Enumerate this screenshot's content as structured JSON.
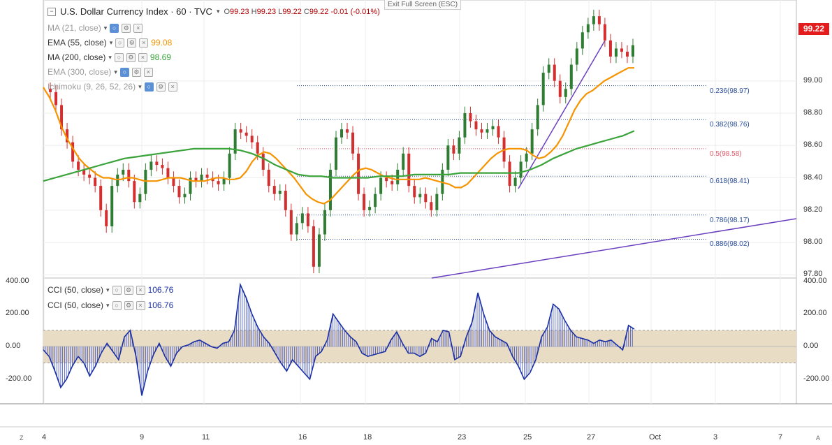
{
  "header": {
    "collapse_icon": "minus-square-icon",
    "title": "U.S. Dollar Currency Index · 60 · TVC",
    "ohlc": {
      "o_label": "O",
      "o": "99.23",
      "h_label": "H",
      "h": "99.23",
      "l_label": "L",
      "l": "99.22",
      "c_label": "C",
      "c": "99.22",
      "change": "-0.01 (-0.01%)"
    },
    "exit_fullscreen": "Exit Full Screen (ESC)"
  },
  "indicators": [
    {
      "label": "MA (21, close)",
      "value": "",
      "color": "#9a9a9a"
    },
    {
      "label": "EMA (55, close)",
      "value": "99.08",
      "color": "#f59300"
    },
    {
      "label": "MA (200, close)",
      "value": "98.69",
      "color": "#3aa33a"
    },
    {
      "label": "EMA (300, close)",
      "value": "",
      "color": "#9a9a9a"
    },
    {
      "label": "Ichimoku (9, 26, 52, 26)",
      "value": "",
      "color": "#9a9a9a"
    }
  ],
  "cci_legends": [
    {
      "label": "CCI (50, close)",
      "value": "106.76"
    },
    {
      "label": "CCI (50, close)",
      "value": "106.76"
    }
  ],
  "last_price": "99.22",
  "price_axis": [
    "99.00",
    "98.80",
    "98.60",
    "98.40",
    "98.20",
    "98.00",
    "97.80"
  ],
  "cci_axis": [
    "400.00",
    "200.00",
    "0.00",
    "-200.00"
  ],
  "time_axis": [
    "4",
    "9",
    "11",
    "16",
    "18",
    "23",
    "25",
    "27",
    "Oct",
    "3",
    "7"
  ],
  "corner_left": "Z",
  "corner_right": "A",
  "colors": {
    "up": "#2e7d32",
    "down": "#d32f2f",
    "ema55": "#f59300",
    "ma200": "#3aa33a",
    "trend": "#6a3fbf",
    "cci": "#1a2fa3",
    "band": "#e9dcc4"
  },
  "chart_data": {
    "type": "line",
    "title": "U.S. Dollar Currency Index · 60 · TVC",
    "price_range": [
      97.78,
      99.5
    ],
    "cci_range": [
      -350,
      420
    ],
    "fibonacci": [
      {
        "label": "0.236(98.97)",
        "value": 98.97,
        "color": "#2b4f99"
      },
      {
        "label": "0.382(98.76)",
        "value": 98.76,
        "color": "#2b4f99"
      },
      {
        "label": "0.5(98.58)",
        "value": 98.58,
        "color": "#e05a6a"
      },
      {
        "label": "0.618(98.41)",
        "value": 98.41,
        "color": "#2b4f99"
      },
      {
        "label": "0.786(98.17)",
        "value": 98.17,
        "color": "#2b4f99"
      },
      {
        "label": "0.886(98.02)",
        "value": 98.02,
        "color": "#2b4f99"
      }
    ],
    "price_series": [
      98.95,
      98.93,
      98.85,
      98.7,
      98.62,
      98.5,
      98.45,
      98.42,
      98.4,
      98.35,
      98.2,
      98.1,
      98.35,
      98.42,
      98.45,
      98.38,
      98.25,
      98.3,
      98.45,
      98.5,
      98.48,
      98.46,
      98.4,
      98.35,
      98.28,
      98.3,
      98.4,
      98.38,
      98.42,
      98.4,
      98.38,
      98.36,
      98.4,
      98.55,
      98.7,
      98.68,
      98.66,
      98.62,
      98.55,
      98.45,
      98.35,
      98.3,
      98.32,
      98.2,
      98.05,
      98.12,
      98.18,
      98.1,
      97.85,
      98.05,
      98.2,
      98.45,
      98.65,
      98.7,
      98.68,
      98.55,
      98.3,
      98.2,
      98.22,
      98.3,
      98.4,
      98.38,
      98.36,
      98.45,
      98.55,
      98.35,
      98.28,
      98.3,
      98.25,
      98.2,
      98.3,
      98.45,
      98.6,
      98.55,
      98.65,
      98.8,
      98.75,
      98.7,
      98.68,
      98.7,
      98.72,
      98.65,
      98.5,
      98.35,
      98.4,
      98.5,
      98.55,
      98.7,
      98.85,
      99.05,
      99.1,
      99.0,
      98.9,
      98.95,
      99.1,
      99.2,
      99.3,
      99.35,
      99.4,
      99.35,
      99.25,
      99.15,
      99.2,
      99.18,
      99.15,
      99.22
    ],
    "ema55": [
      98.96,
      98.9,
      98.82,
      98.72,
      98.64,
      98.58,
      98.52,
      98.48,
      98.45,
      98.42,
      98.4,
      98.4,
      98.39,
      98.39,
      98.4,
      98.4,
      98.39,
      98.38,
      98.38,
      98.38,
      98.39,
      98.4,
      98.4,
      98.4,
      98.39,
      98.38,
      98.38,
      98.38,
      98.39,
      98.4,
      98.4,
      98.39,
      98.39,
      98.4,
      98.44,
      98.5,
      98.54,
      98.56,
      98.55,
      98.52,
      98.48,
      98.44,
      98.4,
      98.35,
      98.3,
      98.27,
      98.25,
      98.24,
      98.26,
      98.3,
      98.34,
      98.38,
      98.42,
      98.45,
      98.46,
      98.45,
      98.43,
      98.41,
      98.4,
      98.39,
      98.39,
      98.39,
      98.39,
      98.39,
      98.4,
      98.39,
      98.38,
      98.37,
      98.36,
      98.34,
      98.34,
      98.36,
      98.4,
      98.44,
      98.48,
      98.52,
      98.55,
      98.57,
      98.58,
      98.58,
      98.58,
      98.57,
      98.54,
      98.52,
      98.53,
      98.56,
      98.6,
      98.66,
      98.74,
      98.82,
      98.88,
      98.92,
      98.94,
      98.97,
      99.0,
      99.02,
      99.04,
      99.06,
      99.08,
      99.08
    ],
    "ma200": [
      98.38,
      98.4,
      98.42,
      98.44,
      98.46,
      98.48,
      98.5,
      98.52,
      98.53,
      98.54,
      98.55,
      98.56,
      98.57,
      98.58,
      98.58,
      98.58,
      98.58,
      98.57,
      98.55,
      98.52,
      98.48,
      98.45,
      98.42,
      98.41,
      98.41,
      98.4,
      98.4,
      98.4,
      98.4,
      98.41,
      98.41,
      98.41,
      98.42,
      98.42,
      98.42,
      98.42,
      98.43,
      98.43,
      98.43,
      98.43,
      98.43,
      98.43,
      98.45,
      98.48,
      98.52,
      98.55,
      98.58,
      98.6,
      98.62,
      98.64,
      98.66,
      98.69
    ],
    "cci_series": [
      -20,
      -60,
      -150,
      -250,
      -200,
      -120,
      -60,
      -100,
      -180,
      -120,
      -40,
      20,
      -30,
      -80,
      60,
      100,
      -60,
      -300,
      -150,
      -50,
      20,
      -60,
      -120,
      -40,
      0,
      10,
      30,
      40,
      20,
      0,
      -10,
      20,
      30,
      100,
      380,
      300,
      200,
      120,
      60,
      20,
      -40,
      -100,
      -150,
      -80,
      -120,
      -160,
      -200,
      -60,
      -30,
      40,
      200,
      150,
      100,
      60,
      30,
      -40,
      -60,
      -50,
      -40,
      -30,
      40,
      90,
      20,
      -40,
      -40,
      -60,
      -40,
      50,
      30,
      100,
      90,
      -80,
      -60,
      60,
      150,
      330,
      200,
      100,
      60,
      40,
      20,
      -60,
      -120,
      -200,
      -160,
      -80,
      60,
      120,
      260,
      230,
      160,
      100,
      60,
      50,
      40,
      20,
      40,
      30,
      40,
      10,
      -20,
      130,
      106.76
    ]
  }
}
